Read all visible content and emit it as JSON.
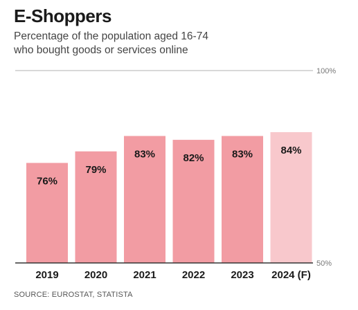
{
  "header": {
    "title": "E-Shoppers",
    "subtitle_line1": "Percentage of the population aged 16-74",
    "subtitle_line2": "who bought goods or services online"
  },
  "footer": {
    "source": "SOURCE: EUROSTAT, STATISTA"
  },
  "colors": {
    "bar": "#f29ca3",
    "bar_forecast": "#f8c8cc",
    "gridline": "#b0b0b0",
    "baseline": "#333333",
    "text": "#1a1a1a",
    "tick": "#777777"
  },
  "chart_data": {
    "type": "bar",
    "title": "E-Shoppers",
    "subtitle": "Percentage of the population aged 16-74 who bought goods or services online",
    "categories": [
      "2019",
      "2020",
      "2021",
      "2022",
      "2023",
      "2024 (F)"
    ],
    "values": [
      76,
      79,
      83,
      82,
      83,
      84
    ],
    "value_labels": [
      "76%",
      "79%",
      "83%",
      "82%",
      "83%",
      "84%"
    ],
    "forecast": [
      false,
      false,
      false,
      false,
      false,
      true
    ],
    "ylim": [
      50,
      100
    ],
    "y_ticks": [
      {
        "value": 100,
        "label": "100%"
      },
      {
        "value": 50,
        "label": "50%"
      }
    ],
    "xlabel": "",
    "ylabel": "",
    "grid": true,
    "legend": "none"
  }
}
